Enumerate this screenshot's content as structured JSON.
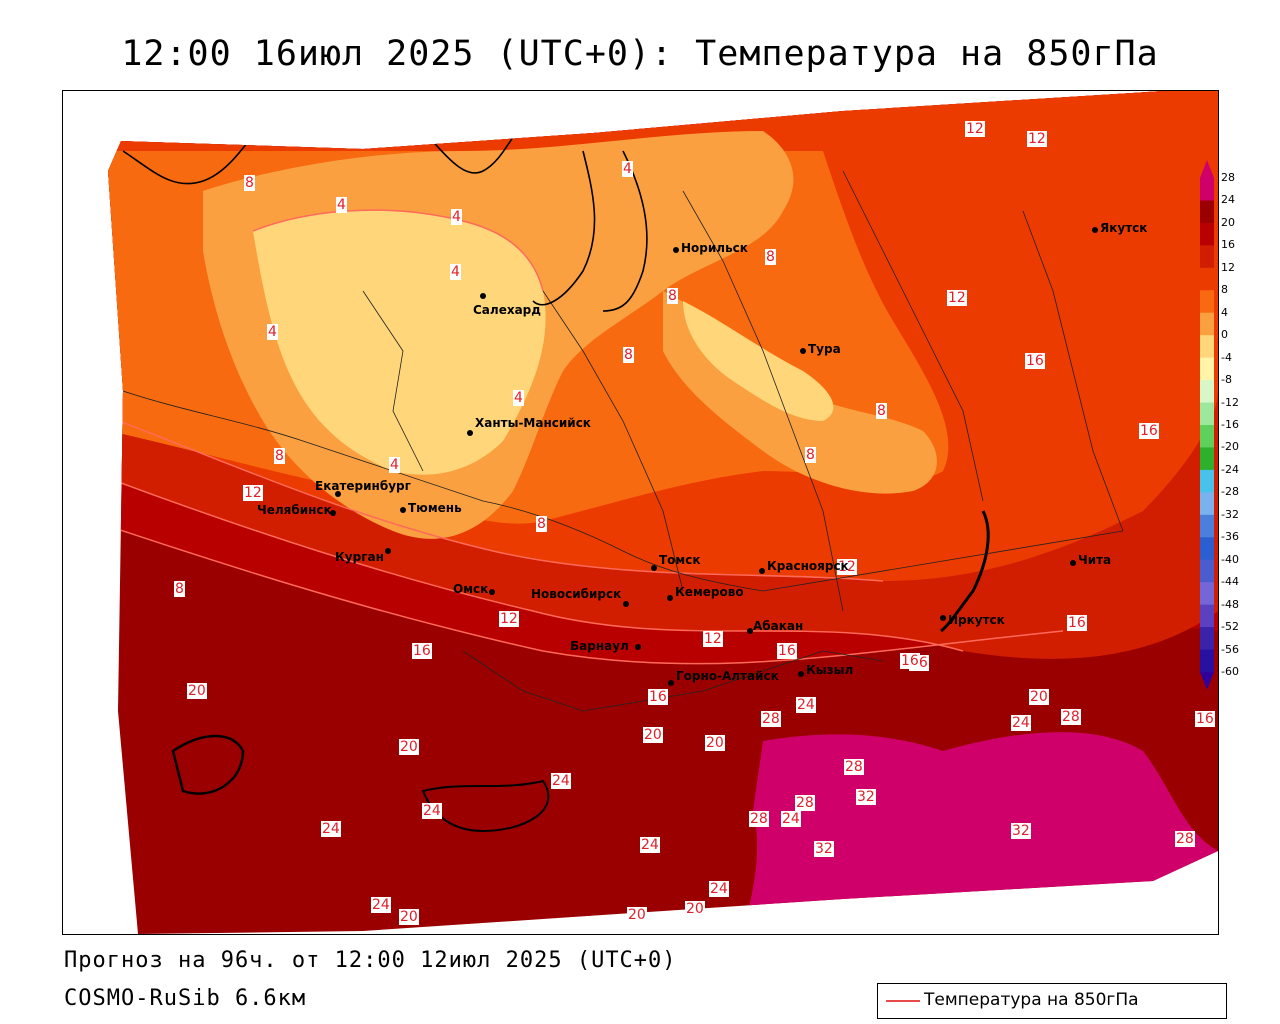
{
  "title": "12:00 16июл 2025 (UTC+0): Температура на 850гПа",
  "forecast": "Прогноз на 96ч. от 12:00 12июл 2025 (UTC+0)",
  "model": "COSMO-RuSib 6.6км",
  "legend": {
    "label": "Температура на 850гПа",
    "color": "#e84a4a"
  },
  "colorbar": {
    "ticks": [
      "28",
      "24",
      "20",
      "16",
      "12",
      "8",
      "4",
      "0",
      "-4",
      "-8",
      "-12",
      "-16",
      "-20",
      "-24",
      "-28",
      "-32",
      "-36",
      "-40",
      "-44",
      "-48",
      "-52",
      "-56",
      "-60"
    ],
    "colors": [
      "#d0006a",
      "#9b0000",
      "#b80000",
      "#d21e00",
      "#ec3b00",
      "#f86a10",
      "#fba040",
      "#ffd67a",
      "#fff4a8",
      "#d8f7c8",
      "#9de89c",
      "#5fd05c",
      "#2fb02c",
      "#48c2ea",
      "#7ab2ee",
      "#4a80dc",
      "#2b5ed0",
      "#4b5ccf",
      "#7466d6",
      "#5b40c0",
      "#3a23a8",
      "#2810a0",
      "#30009c"
    ]
  },
  "cities": [
    {
      "name": "Якутск"
    },
    {
      "name": "Норильск"
    },
    {
      "name": "Салехард"
    },
    {
      "name": "Тура"
    },
    {
      "name": "Ханты-Мансийск"
    },
    {
      "name": "Екатеринбург"
    },
    {
      "name": "Тюмень"
    },
    {
      "name": "Челябинск"
    },
    {
      "name": "Курган"
    },
    {
      "name": "Омск"
    },
    {
      "name": "Новосибирск"
    },
    {
      "name": "Томск"
    },
    {
      "name": "Кемерово"
    },
    {
      "name": "Красноярск"
    },
    {
      "name": "Барнаул"
    },
    {
      "name": "Абакан"
    },
    {
      "name": "Горно-Алтайск"
    },
    {
      "name": "Кызыл"
    },
    {
      "name": "Иркутск"
    },
    {
      "name": "Чита"
    }
  ],
  "isolines": [
    "12",
    "12",
    "8",
    "4",
    "4",
    "4",
    "4",
    "8",
    "8",
    "8",
    "12",
    "4",
    "4",
    "8",
    "16",
    "8",
    "8",
    "16",
    "8",
    "12",
    "4",
    "8",
    "16",
    "12",
    "12",
    "16",
    "16",
    "16",
    "20",
    "16",
    "20",
    "20",
    "24",
    "20",
    "24",
    "28",
    "16",
    "24",
    "28",
    "24",
    "28",
    "32",
    "32",
    "28",
    "24",
    "24",
    "28",
    "24",
    "32",
    "20",
    "20",
    "24",
    "20",
    "24",
    "20",
    "28",
    "16",
    "16",
    "12"
  ]
}
